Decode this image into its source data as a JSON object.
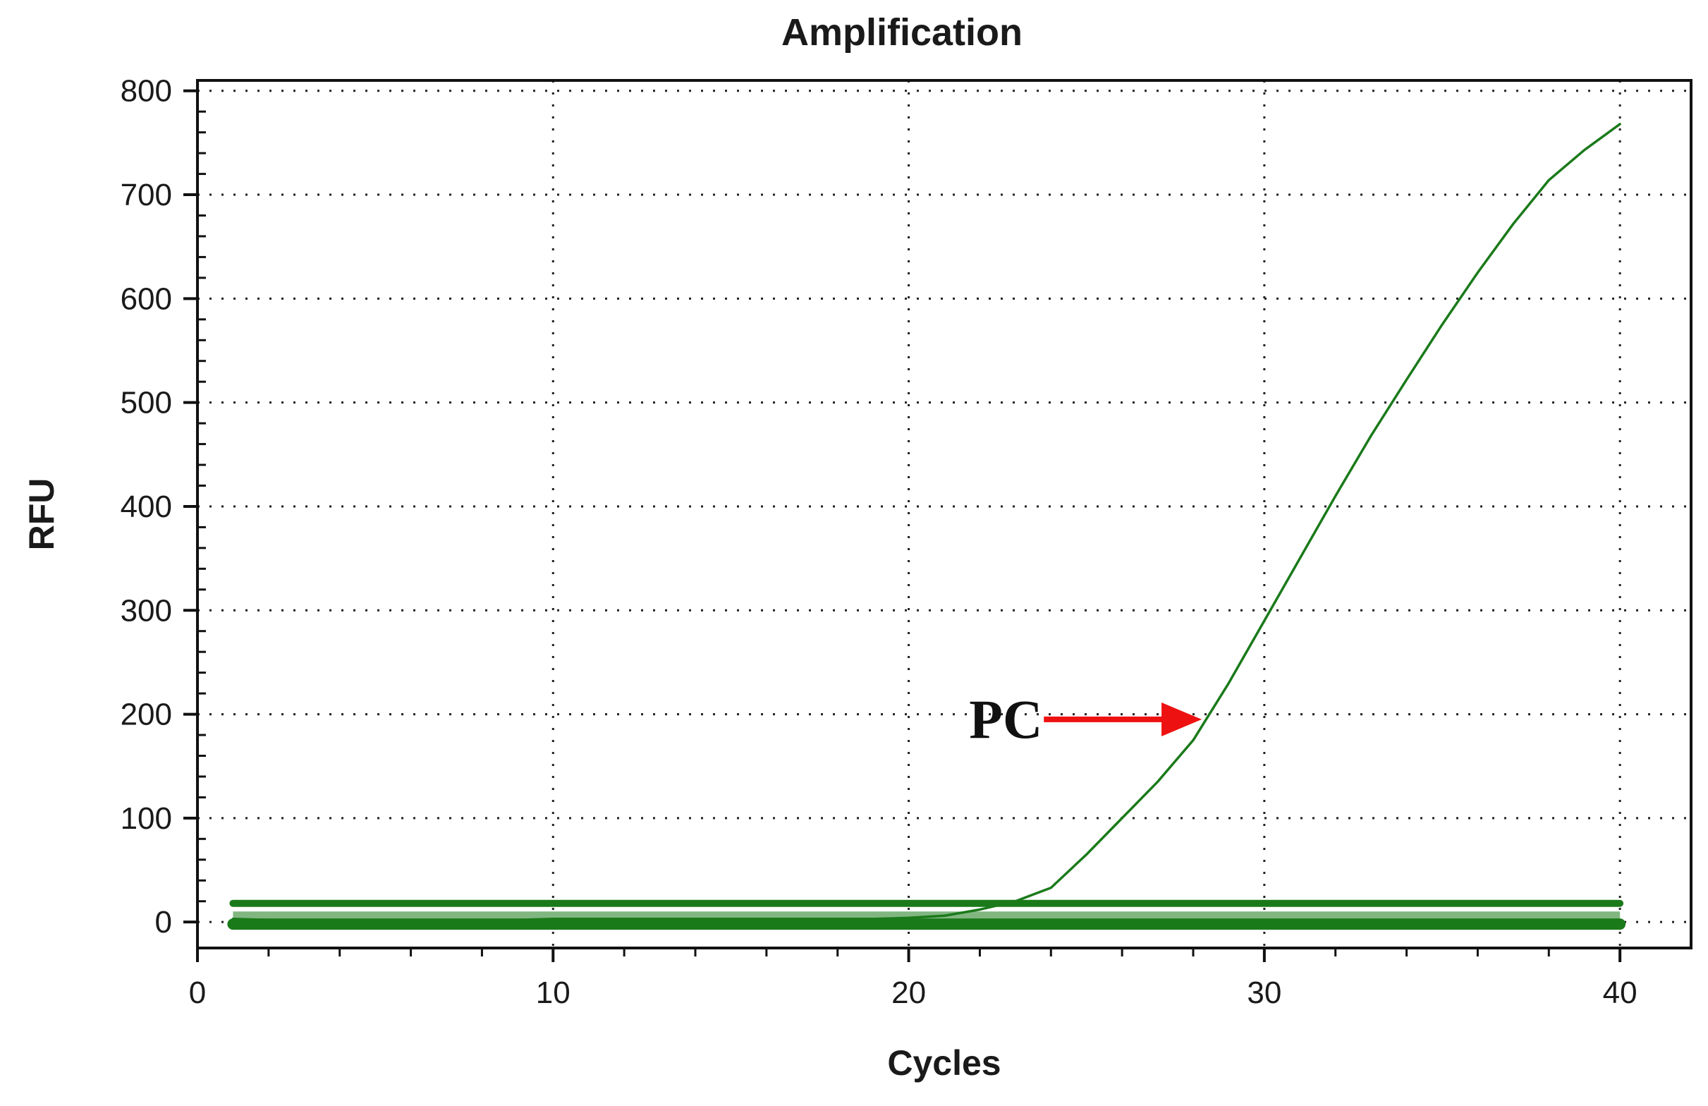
{
  "chart_data": {
    "type": "line",
    "title": "Amplification",
    "xlabel": "Cycles",
    "ylabel": "RFU",
    "xlim": [
      0,
      42
    ],
    "ylim": [
      -25,
      810
    ],
    "x_ticks": [
      0,
      10,
      20,
      30,
      40
    ],
    "y_ticks": [
      0,
      100,
      200,
      300,
      400,
      500,
      600,
      700,
      800
    ],
    "grid": true,
    "grid_style": "dotted",
    "series_color": "#1a7a1a",
    "series": [
      {
        "x": [
          1,
          2,
          3,
          4,
          5,
          6,
          7,
          8,
          9,
          10,
          11,
          12,
          13,
          14,
          15,
          16,
          17,
          18,
          19,
          20,
          21,
          22,
          23,
          24,
          25,
          26,
          27,
          28,
          29,
          30,
          31,
          32,
          33,
          34,
          35,
          36,
          37,
          38,
          39,
          40
        ],
        "values": [
          3,
          2,
          2,
          2,
          2,
          2,
          2,
          2,
          2,
          3,
          3,
          3,
          3,
          3,
          3,
          3,
          3,
          3,
          3,
          4,
          6,
          12,
          20,
          33,
          65,
          100,
          135,
          175,
          230,
          290,
          350,
          410,
          468,
          522,
          575,
          625,
          672,
          714,
          743,
          768
        ]
      },
      {
        "x": [
          1,
          40
        ],
        "values": [
          18,
          18
        ]
      },
      {
        "x": [
          1,
          40
        ],
        "values": [
          -2,
          -2
        ]
      }
    ],
    "annotations": [
      {
        "text": "PC",
        "arrow_color": "#ee1111",
        "points_to": {
          "x": 28.2,
          "y": 195
        }
      }
    ]
  }
}
